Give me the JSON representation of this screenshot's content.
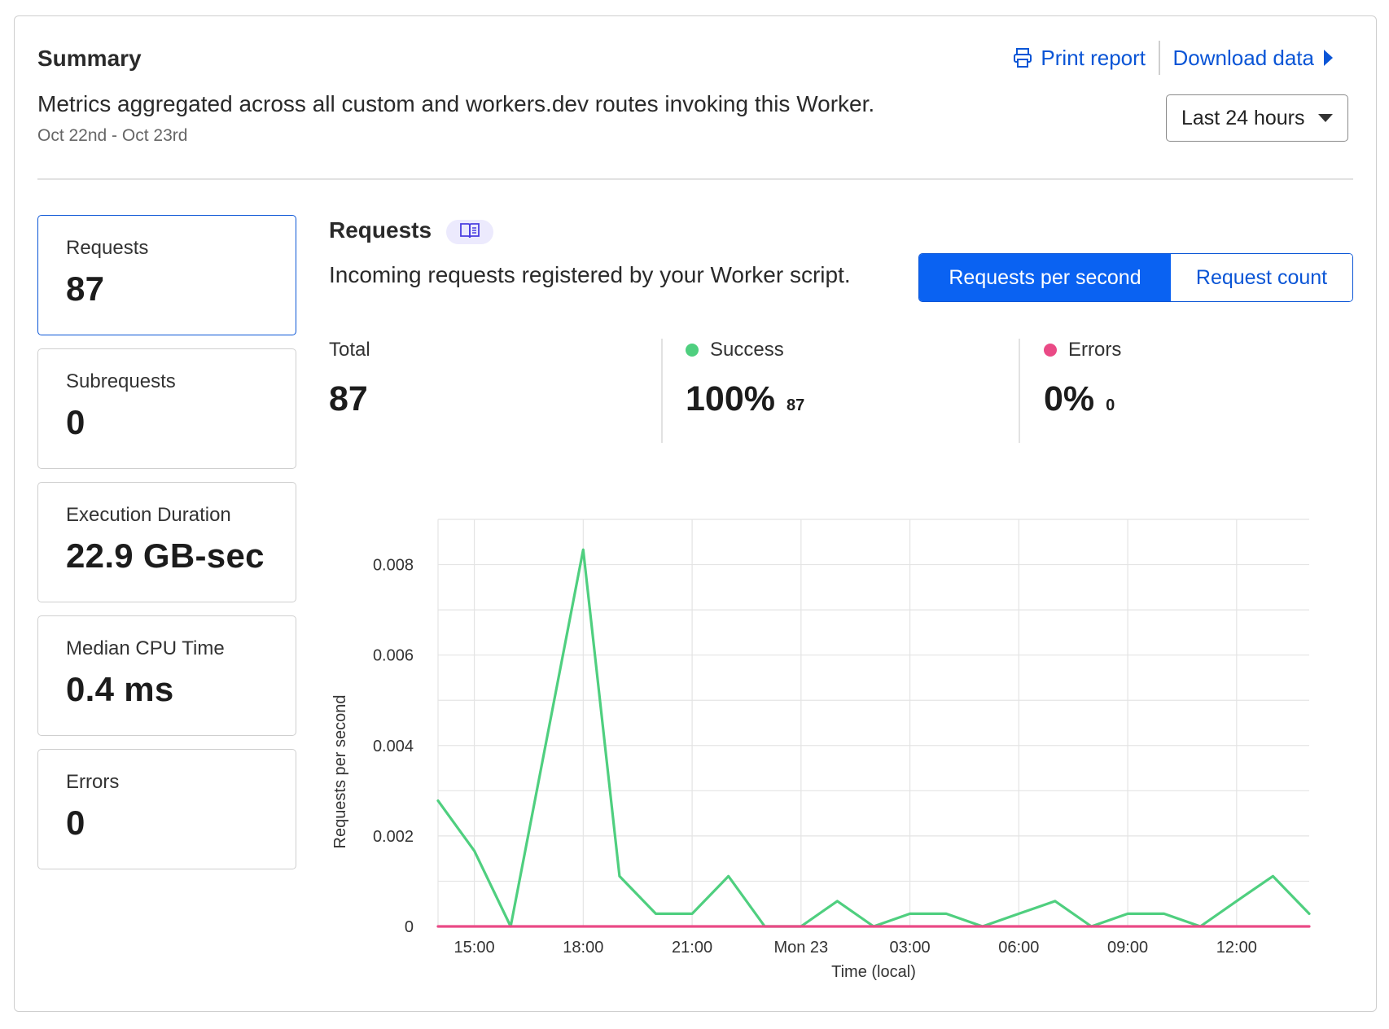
{
  "summary": {
    "title": "Summary",
    "description": "Metrics aggregated across all custom and workers.dev routes invoking this Worker.",
    "date_range": "Oct 22nd - Oct 23rd"
  },
  "actions": {
    "print_label": "Print report",
    "download_label": "Download data"
  },
  "time_range": {
    "selected": "Last 24 hours"
  },
  "metrics": [
    {
      "label": "Requests",
      "value": "87",
      "active": true
    },
    {
      "label": "Subrequests",
      "value": "0",
      "active": false
    },
    {
      "label": "Execution Duration",
      "value": "22.9 GB-sec",
      "active": false
    },
    {
      "label": "Median CPU Time",
      "value": "0.4 ms",
      "active": false
    },
    {
      "label": "Errors",
      "value": "0",
      "active": false
    }
  ],
  "requests_section": {
    "title": "Requests",
    "description": "Incoming requests registered by your Worker script.",
    "toggle": {
      "selected": "Requests per second",
      "other": "Request count"
    }
  },
  "stats": {
    "total": {
      "label": "Total",
      "value": "87"
    },
    "success": {
      "label": "Success",
      "value": "100%",
      "count": "87",
      "color": "#4fcf7f"
    },
    "errors": {
      "label": "Errors",
      "value": "0%",
      "count": "0",
      "color": "#ea4a86"
    }
  },
  "colors": {
    "accent": "#0a55d6",
    "success_line": "#4fcf7f",
    "error_line": "#ea4a86"
  },
  "chart_data": {
    "type": "line",
    "xlabel": "Time (local)",
    "ylabel": "Requests per second",
    "ylim": [
      0,
      0.009
    ],
    "yticks": [
      0,
      0.002,
      0.004,
      0.006,
      0.008
    ],
    "ytick_labels": [
      "0",
      "0.002",
      "0.004",
      "0.006",
      "0.008"
    ],
    "x_tick_labels": [
      "15:00",
      "18:00",
      "21:00",
      "Mon 23",
      "03:00",
      "06:00",
      "09:00",
      "12:00"
    ],
    "x_tick_hours": [
      15,
      18,
      21,
      24,
      27,
      30,
      33,
      36
    ],
    "x_range_hours": [
      14,
      38
    ],
    "grid": true,
    "legend": "none",
    "series": [
      {
        "name": "Success",
        "color": "#4fcf7f",
        "x_hours": [
          14,
          15,
          16,
          17,
          18,
          19,
          20,
          21,
          22,
          23,
          24,
          25,
          26,
          27,
          28,
          29,
          30,
          31,
          32,
          33,
          34,
          35,
          36,
          37,
          38
        ],
        "values": [
          0.00278,
          0.00167,
          0,
          0.00417,
          0.00833,
          0.00111,
          0.00028,
          0.00028,
          0.00111,
          0,
          0,
          0.00056,
          0,
          0.00028,
          0.00028,
          0,
          0.00028,
          0.00056,
          0,
          0.00028,
          0.00028,
          0,
          0.00056,
          0.00111,
          0.00028
        ]
      },
      {
        "name": "Errors",
        "color": "#ea4a86",
        "x_hours": [
          14,
          38
        ],
        "values": [
          0,
          0
        ]
      }
    ]
  }
}
